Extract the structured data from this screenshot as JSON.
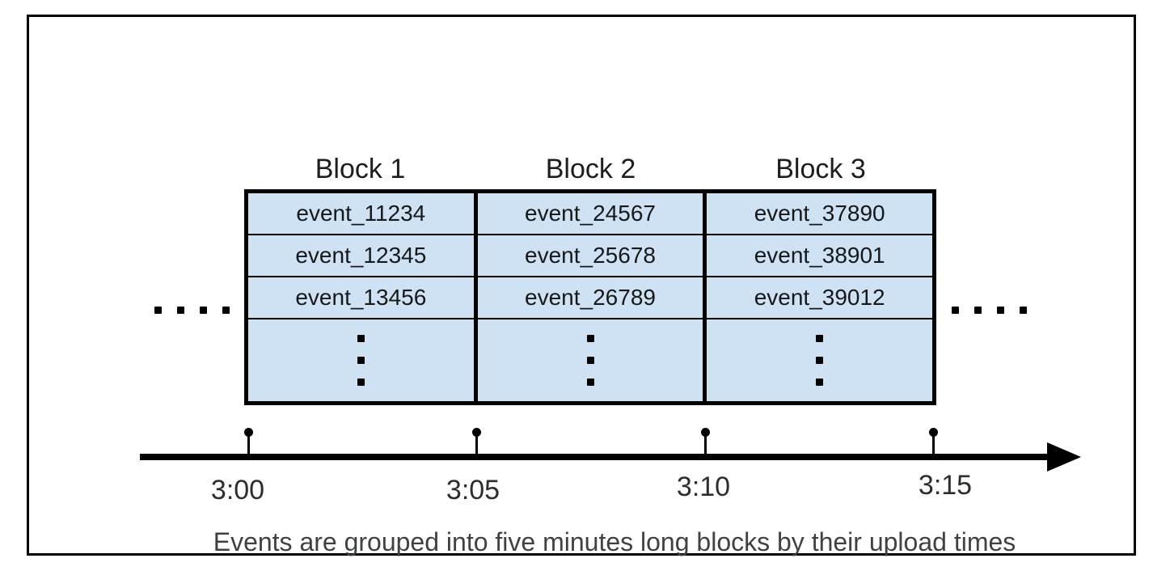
{
  "diagram": {
    "cell_fill": "#cfe2f3",
    "line_color": "#000000",
    "blocks": [
      {
        "label": "Block 1",
        "events": [
          "event_11234",
          "event_12345",
          "event_13456"
        ]
      },
      {
        "label": "Block 2",
        "events": [
          "event_24567",
          "event_25678",
          "event_26789"
        ]
      },
      {
        "label": "Block 3",
        "events": [
          "event_37890",
          "event_38901",
          "event_39012"
        ]
      }
    ]
  },
  "timeline": {
    "ticks": [
      "3:00",
      "3:05",
      "3:10",
      "3:15"
    ]
  },
  "caption": {
    "text": "Events are grouped into five minutes long blocks by their upload times",
    "color": "#3f4245"
  }
}
